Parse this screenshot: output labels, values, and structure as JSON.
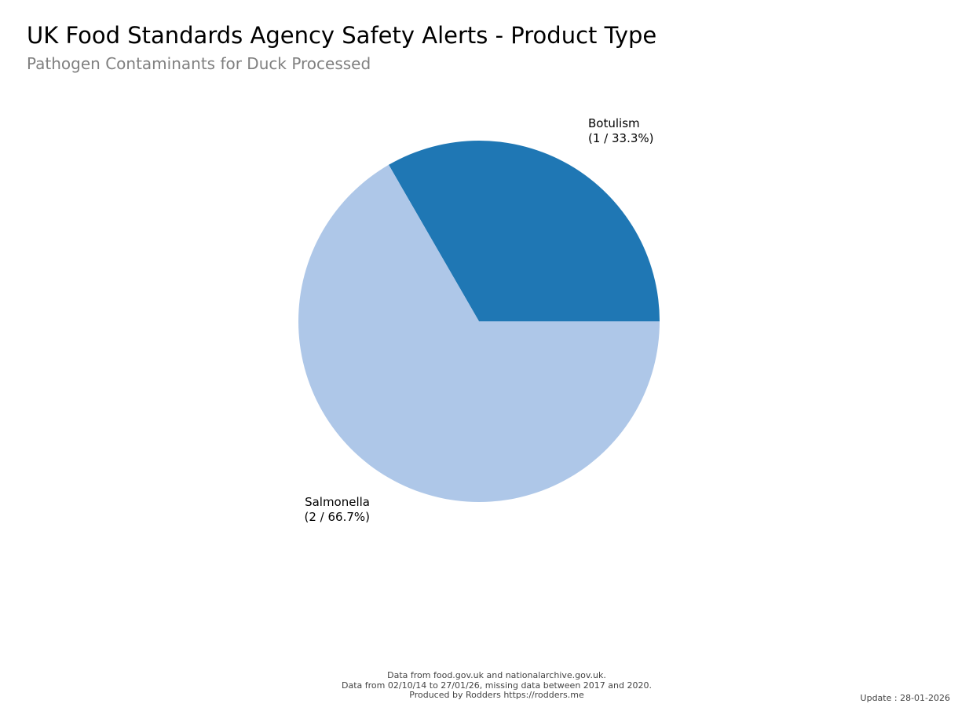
{
  "header": {
    "title": "UK Food Standards Agency Safety Alerts - Product Type",
    "subtitle": "Pathogen Contaminants for Duck Processed"
  },
  "chart_data": {
    "type": "pie",
    "title": "UK Food Standards Agency Safety Alerts - Product Type",
    "subtitle": "Pathogen Contaminants for Duck Processed",
    "slices": [
      {
        "label": "Botulism",
        "value": 1,
        "percent": 33.3,
        "display": "(1 / 33.3%)",
        "color": "#1f77b4"
      },
      {
        "label": "Salmonella",
        "value": 2,
        "percent": 66.7,
        "display": "(2 / 66.7%)",
        "color": "#aec7e8"
      }
    ],
    "total": 3,
    "legend": "none"
  },
  "footer": {
    "line1": "Data from food.gov.uk and nationalarchive.gov.uk.",
    "line2": "Data from 02/10/14 to 27/01/26, missing data between 2017 and 2020.",
    "line3": "Produced by Rodders https://rodders.me",
    "update": "Update : 28-01-2026"
  }
}
